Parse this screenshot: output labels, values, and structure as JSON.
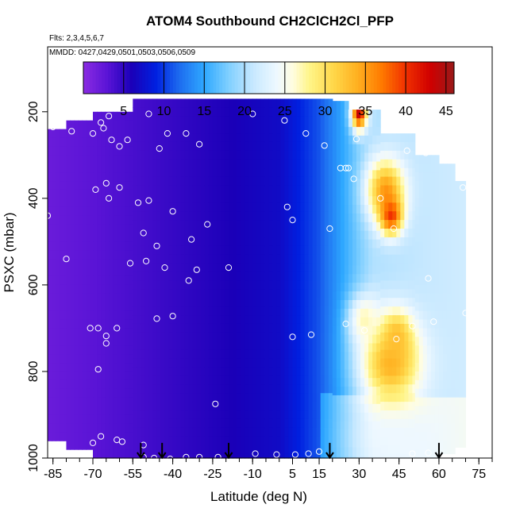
{
  "chart_data": {
    "type": "heatmap",
    "title": "ATOM4 Southbound CH2ClCH2Cl_PFP",
    "flights_label": "Flts: 2,3,4,5,6,7",
    "dates_label": "MMDD: 0427,0429,0501,0503,0506,0509",
    "xlabel": "Latitude (deg N)",
    "ylabel": "PSXC (mbar)",
    "xlim": [
      -87,
      80
    ],
    "ylim": [
      1000,
      50
    ],
    "x_ticks": [
      -85,
      -70,
      -55,
      -40,
      -25,
      -10,
      5,
      15,
      30,
      45,
      60,
      75
    ],
    "x_tick_labels": [
      "-85",
      "-70",
      "-55",
      "-40",
      "-25",
      "-10",
      "5",
      "15",
      "30",
      "45",
      "60",
      "75"
    ],
    "x_minor_ticks": [
      -85,
      -80,
      -75,
      -70,
      -65,
      -60,
      -55,
      -50,
      -45,
      -40,
      -35,
      -30,
      -25,
      -20,
      -15,
      -10,
      -5,
      0,
      5,
      10,
      15,
      20,
      25,
      30,
      35,
      40,
      45,
      50,
      55,
      60,
      65,
      70,
      75,
      80
    ],
    "y_ticks": [
      200,
      400,
      600,
      800,
      1000
    ],
    "y_tick_labels": [
      "200",
      "400",
      "600",
      "800",
      "1000"
    ],
    "colorbar": {
      "min": 0,
      "max": 46,
      "ticks": [
        5,
        10,
        15,
        20,
        25,
        30,
        35,
        40,
        45
      ],
      "tick_labels": [
        "5",
        "10",
        "15",
        "20",
        "25",
        "30",
        "35",
        "40",
        "45"
      ]
    },
    "color_stops": [
      {
        "v": 0,
        "c": "#8a2be2"
      },
      {
        "v": 3,
        "c": "#5a14d6"
      },
      {
        "v": 6,
        "c": "#1a00b8"
      },
      {
        "v": 9,
        "c": "#0020e0"
      },
      {
        "v": 12,
        "c": "#1e6ef0"
      },
      {
        "v": 15,
        "c": "#2ea8ff"
      },
      {
        "v": 18,
        "c": "#7fcfff"
      },
      {
        "v": 21,
        "c": "#c6e8ff"
      },
      {
        "v": 24,
        "c": "#eef8ff"
      },
      {
        "v": 26,
        "c": "#fffde0"
      },
      {
        "v": 28,
        "c": "#fff58a"
      },
      {
        "v": 31,
        "c": "#ffd84a"
      },
      {
        "v": 34,
        "c": "#ffb020"
      },
      {
        "v": 37,
        "c": "#ff7a00"
      },
      {
        "v": 40,
        "c": "#f03000"
      },
      {
        "v": 43,
        "c": "#d00000"
      },
      {
        "v": 46,
        "c": "#9a1a1a"
      }
    ],
    "profile_columns": [
      {
        "lat0": -87,
        "lat1": -80,
        "top": 240,
        "bottom": 960
      },
      {
        "lat0": -80,
        "lat1": -70,
        "top": 220,
        "bottom": 980
      },
      {
        "lat0": -70,
        "lat1": -55,
        "top": 200,
        "bottom": 1000
      },
      {
        "lat0": -55,
        "lat1": 20,
        "top": 170,
        "bottom": 1000
      },
      {
        "lat0": 20,
        "lat1": 26,
        "top": 175,
        "bottom": 1000
      },
      {
        "lat0": 26,
        "lat1": 38,
        "top": 195,
        "bottom": 1000
      },
      {
        "lat0": 38,
        "lat1": 51,
        "top": 250,
        "bottom": 1000
      },
      {
        "lat0": 51,
        "lat1": 60,
        "top": 300,
        "bottom": 1000
      },
      {
        "lat0": 60,
        "lat1": 66,
        "top": 320,
        "bottom": 990
      },
      {
        "lat0": 66,
        "lat1": 70,
        "top": 360,
        "bottom": 975
      }
    ],
    "concentration_features": [
      {
        "lat": 30,
        "p": 200,
        "value": 44,
        "lat_sigma": 2,
        "p_sigma": 30
      },
      {
        "lat": 40,
        "p": 380,
        "value": 35,
        "lat_sigma": 5,
        "p_sigma": 50
      },
      {
        "lat": 42,
        "p": 440,
        "value": 40,
        "lat_sigma": 3,
        "p_sigma": 30
      },
      {
        "lat": 42,
        "p": 780,
        "value": 34,
        "lat_sigma": 8,
        "p_sigma": 70
      },
      {
        "lat": 44,
        "p": 720,
        "value": 33,
        "lat_sigma": 4,
        "p_sigma": 40
      },
      {
        "lat": 32,
        "p": 680,
        "value": 27,
        "lat_sigma": 4,
        "p_sigma": 40
      },
      {
        "lat": 45,
        "p": 960,
        "value": 24,
        "lat_sigma": 10,
        "p_sigma": 40
      }
    ],
    "sample_points": [
      {
        "lat": -85,
        "p": 235
      },
      {
        "lat": -78,
        "p": 245
      },
      {
        "lat": -70,
        "p": 250
      },
      {
        "lat": -67,
        "p": 225
      },
      {
        "lat": -66,
        "p": 238
      },
      {
        "lat": -64,
        "p": 210
      },
      {
        "lat": -63,
        "p": 265
      },
      {
        "lat": -60,
        "p": 280
      },
      {
        "lat": -57,
        "p": 265
      },
      {
        "lat": -49,
        "p": 205
      },
      {
        "lat": -45,
        "p": 285
      },
      {
        "lat": -42,
        "p": 250
      },
      {
        "lat": -35,
        "p": 250
      },
      {
        "lat": -30,
        "p": 275
      },
      {
        "lat": -10,
        "p": 205
      },
      {
        "lat": 2,
        "p": 220
      },
      {
        "lat": 10,
        "p": 250
      },
      {
        "lat": 17,
        "p": 278
      },
      {
        "lat": -69,
        "p": 380
      },
      {
        "lat": -65,
        "p": 365
      },
      {
        "lat": -64,
        "p": 400
      },
      {
        "lat": -60,
        "p": 375
      },
      {
        "lat": -53,
        "p": 410
      },
      {
        "lat": -49,
        "p": 405
      },
      {
        "lat": -40,
        "p": 430
      },
      {
        "lat": -27,
        "p": 460
      },
      {
        "lat": -51,
        "p": 480
      },
      {
        "lat": -46,
        "p": 510
      },
      {
        "lat": -33,
        "p": 495
      },
      {
        "lat": -87,
        "p": 440
      },
      {
        "lat": -80,
        "p": 540
      },
      {
        "lat": -50,
        "p": 545
      },
      {
        "lat": -56,
        "p": 550
      },
      {
        "lat": -43,
        "p": 560
      },
      {
        "lat": -31,
        "p": 565
      },
      {
        "lat": -34,
        "p": 590
      },
      {
        "lat": -19,
        "p": 560
      },
      {
        "lat": 3,
        "p": 420
      },
      {
        "lat": 5,
        "p": 450
      },
      {
        "lat": 19,
        "p": 470
      },
      {
        "lat": 23,
        "p": 330
      },
      {
        "lat": 25,
        "p": 330
      },
      {
        "lat": 26,
        "p": 330
      },
      {
        "lat": 29,
        "p": 263
      },
      {
        "lat": 28,
        "p": 355
      },
      {
        "lat": 43,
        "p": 470
      },
      {
        "lat": 48,
        "p": 290
      },
      {
        "lat": 55,
        "p": 295
      },
      {
        "lat": 69,
        "p": 375
      },
      {
        "lat": 38,
        "p": 400
      },
      {
        "lat": 56,
        "p": 585
      },
      {
        "lat": 70,
        "p": 665
      },
      {
        "lat": 58,
        "p": 685
      },
      {
        "lat": 50,
        "p": 695
      },
      {
        "lat": 25,
        "p": 690
      },
      {
        "lat": 32,
        "p": 705
      },
      {
        "lat": 44,
        "p": 725
      },
      {
        "lat": 5,
        "p": 720
      },
      {
        "lat": 12,
        "p": 715
      },
      {
        "lat": -71,
        "p": 700
      },
      {
        "lat": -68,
        "p": 700
      },
      {
        "lat": -65,
        "p": 718
      },
      {
        "lat": -65,
        "p": 735
      },
      {
        "lat": -61,
        "p": 700
      },
      {
        "lat": -46,
        "p": 678
      },
      {
        "lat": -40,
        "p": 672
      },
      {
        "lat": -68,
        "p": 795
      },
      {
        "lat": -24,
        "p": 875
      },
      {
        "lat": -70,
        "p": 965
      },
      {
        "lat": -67,
        "p": 950
      },
      {
        "lat": -61,
        "p": 958
      },
      {
        "lat": -59,
        "p": 962
      },
      {
        "lat": -51,
        "p": 970
      },
      {
        "lat": -51,
        "p": 998
      },
      {
        "lat": -47,
        "p": 1000
      },
      {
        "lat": -41,
        "p": 1002
      },
      {
        "lat": -35,
        "p": 998
      },
      {
        "lat": -30,
        "p": 998
      },
      {
        "lat": -23,
        "p": 998
      },
      {
        "lat": -9,
        "p": 990
      },
      {
        "lat": -1,
        "p": 992
      },
      {
        "lat": 6,
        "p": 992
      },
      {
        "lat": 11,
        "p": 990
      },
      {
        "lat": 15,
        "p": 985
      },
      {
        "lat": 50,
        "p": 990
      },
      {
        "lat": 56,
        "p": 988
      },
      {
        "lat": 70,
        "p": 990
      }
    ],
    "arrow_latitudes": [
      -52,
      -44,
      -19,
      19,
      60
    ]
  }
}
